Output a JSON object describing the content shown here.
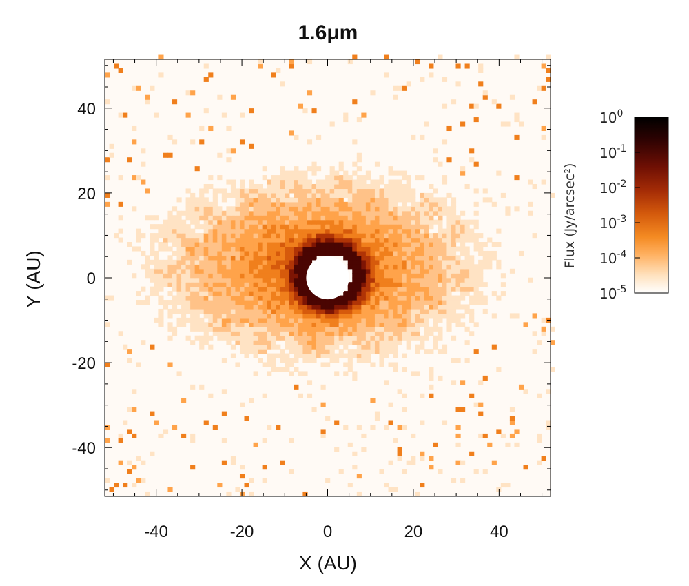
{
  "chart_data": {
    "type": "heatmap",
    "title": "1.6μm",
    "xlabel": "X (AU)",
    "ylabel": "Y (AU)",
    "xlim": [
      -52,
      52
    ],
    "ylim": [
      -51.5,
      51.5
    ],
    "x_ticks": [
      -40,
      -20,
      0,
      20,
      40
    ],
    "y_ticks": [
      -40,
      -20,
      0,
      20,
      40
    ],
    "x_tick_labels": [
      "-40",
      "-20",
      "0",
      "20",
      "40"
    ],
    "y_tick_labels": [
      "-40",
      "-20",
      "0",
      "20",
      "40"
    ],
    "colormap": [
      "#fffaf5",
      "#ffe3c4",
      "#ffc288",
      "#ffa34a",
      "#f07f1c",
      "#d65a0c",
      "#b03406",
      "#7d1504",
      "#4a0502",
      "#1a0000",
      "#000000"
    ],
    "colorbar": {
      "label": "Flux (Jy/arcsec²)",
      "scale": "log",
      "range": [
        1e-05,
        1
      ],
      "ticks": [
        {
          "value": 1,
          "base": "10",
          "exp": "0"
        },
        {
          "value": 0.1,
          "base": "10",
          "exp": "-1"
        },
        {
          "value": 0.01,
          "base": "10",
          "exp": "-2"
        },
        {
          "value": 0.001,
          "base": "10",
          "exp": "-3"
        },
        {
          "value": 0.0001,
          "base": "10",
          "exp": "-4"
        },
        {
          "value": 1e-05,
          "base": "10",
          "exp": "-5"
        }
      ]
    },
    "grid": false,
    "legend": "none",
    "features": {
      "central_mask_radius": 5,
      "disk_center": [
        -3,
        2
      ],
      "disk_semi_axes": [
        42,
        23
      ]
    }
  }
}
